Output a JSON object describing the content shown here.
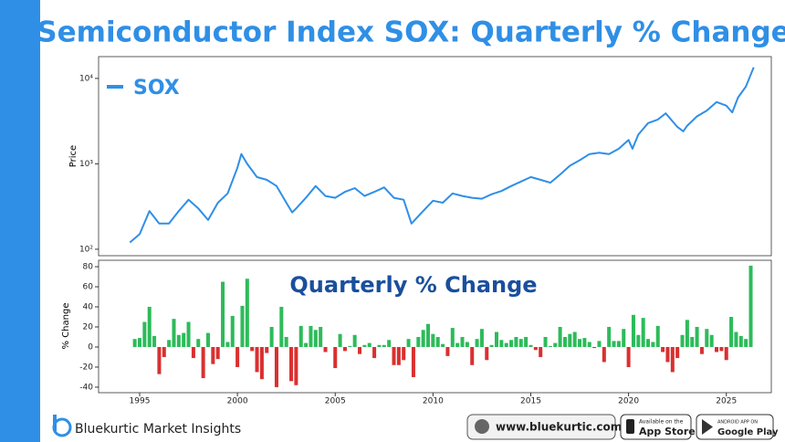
{
  "chart_data": [
    {
      "type": "line",
      "title": "Semiconductor Index SOX: Quarterly % Change",
      "ylabel": "Price",
      "log_y": true,
      "legend": "upper left",
      "xlim": [
        1992.9,
        2027.3
      ],
      "ylim": [
        84,
        18000
      ],
      "yticks": [
        {
          "value": 100,
          "label": "10²"
        },
        {
          "value": 1000,
          "label": "10³"
        },
        {
          "value": 10000,
          "label": "10⁴"
        }
      ],
      "x": [
        1994.5,
        1995.0,
        1995.5,
        1996.0,
        1996.5,
        1997.0,
        1997.5,
        1998.0,
        1998.5,
        1999.0,
        1999.5,
        2000.0,
        2000.2,
        2000.5,
        2001.0,
        2001.5,
        2002.0,
        2002.5,
        2002.8,
        2003.0,
        2003.5,
        2004.0,
        2004.5,
        2005.0,
        2005.5,
        2006.0,
        2006.5,
        2007.0,
        2007.5,
        2008.0,
        2008.5,
        2008.9,
        2009.5,
        2010.0,
        2010.5,
        2011.0,
        2011.5,
        2012.0,
        2012.5,
        2013.0,
        2013.5,
        2014.0,
        2014.5,
        2015.0,
        2015.5,
        2016.0,
        2016.5,
        2017.0,
        2017.5,
        2018.0,
        2018.5,
        2019.0,
        2019.5,
        2020.0,
        2020.2,
        2020.5,
        2021.0,
        2021.5,
        2021.9,
        2022.5,
        2022.8,
        2023.0,
        2023.5,
        2024.0,
        2024.5,
        2025.0,
        2025.3,
        2025.6,
        2026.0,
        2026.4
      ],
      "series": [
        {
          "name": "SOX",
          "color": "#2f8fe6",
          "values": [
            120,
            150,
            280,
            200,
            200,
            280,
            380,
            300,
            220,
            350,
            450,
            900,
            1300,
            1000,
            700,
            650,
            550,
            350,
            270,
            300,
            400,
            550,
            420,
            400,
            470,
            520,
            420,
            470,
            530,
            400,
            380,
            200,
            280,
            370,
            350,
            450,
            420,
            400,
            390,
            440,
            480,
            550,
            620,
            700,
            650,
            600,
            750,
            950,
            1100,
            1300,
            1350,
            1300,
            1500,
            1900,
            1500,
            2200,
            3000,
            3300,
            3900,
            2700,
            2400,
            2800,
            3600,
            4200,
            5300,
            4800,
            4000,
            6000,
            8000,
            13500
          ]
        }
      ]
    },
    {
      "type": "bar",
      "annotation": "Quarterly % Change",
      "ylabel": "% Change",
      "xlim": [
        1992.9,
        2027.3
      ],
      "ylim": [
        -45.5,
        86.4
      ],
      "xticks": [
        1995,
        2000,
        2005,
        2010,
        2015,
        2020,
        2025
      ],
      "yticks": [
        -40,
        -20,
        0,
        20,
        40,
        60,
        80
      ],
      "positive_color": "#2dbb5a",
      "negative_color": "#d93030",
      "x": [
        1994.75,
        1995.0,
        1995.25,
        1995.5,
        1995.75,
        1996.0,
        1996.25,
        1996.5,
        1996.75,
        1997.0,
        1997.25,
        1997.5,
        1997.75,
        1998.0,
        1998.25,
        1998.5,
        1998.75,
        1999.0,
        1999.25,
        1999.5,
        1999.75,
        2000.0,
        2000.25,
        2000.5,
        2000.75,
        2001.0,
        2001.25,
        2001.5,
        2001.75,
        2002.0,
        2002.25,
        2002.5,
        2002.75,
        2003.0,
        2003.25,
        2003.5,
        2003.75,
        2004.0,
        2004.25,
        2004.5,
        2004.75,
        2005.0,
        2005.25,
        2005.5,
        2005.75,
        2006.0,
        2006.25,
        2006.5,
        2006.75,
        2007.0,
        2007.25,
        2007.5,
        2007.75,
        2008.0,
        2008.25,
        2008.5,
        2008.75,
        2009.0,
        2009.25,
        2009.5,
        2009.75,
        2010.0,
        2010.25,
        2010.5,
        2010.75,
        2011.0,
        2011.25,
        2011.5,
        2011.75,
        2012.0,
        2012.25,
        2012.5,
        2012.75,
        2013.0,
        2013.25,
        2013.5,
        2013.75,
        2014.0,
        2014.25,
        2014.5,
        2014.75,
        2015.0,
        2015.25,
        2015.5,
        2015.75,
        2016.0,
        2016.25,
        2016.5,
        2016.75,
        2017.0,
        2017.25,
        2017.5,
        2017.75,
        2018.0,
        2018.25,
        2018.5,
        2018.75,
        2019.0,
        2019.25,
        2019.5,
        2019.75,
        2020.0,
        2020.25,
        2020.5,
        2020.75,
        2021.0,
        2021.25,
        2021.5,
        2021.75,
        2022.0,
        2022.25,
        2022.5,
        2022.75,
        2023.0,
        2023.25,
        2023.5,
        2023.75,
        2024.0,
        2024.25,
        2024.5,
        2024.75,
        2025.0,
        2025.25,
        2025.5,
        2025.75,
        2026.0,
        2026.25
      ],
      "values": [
        8,
        9,
        25,
        40,
        11,
        -27,
        -10,
        7,
        28,
        12,
        14,
        25,
        -11,
        8,
        -31,
        14,
        -17,
        -12,
        65,
        5,
        31,
        -20,
        41,
        68,
        -4,
        -25,
        -32,
        -6,
        20,
        -40,
        40,
        10,
        -34,
        -38,
        21,
        4,
        21,
        17,
        20,
        -5,
        0,
        -21,
        13,
        -4,
        1,
        12,
        -7,
        2,
        4,
        -11,
        2,
        2,
        7,
        -18,
        -18,
        -13,
        8,
        -30,
        10,
        17,
        23,
        13,
        10,
        3,
        -9,
        19,
        4,
        10,
        5,
        -18,
        8,
        18,
        -13,
        2,
        15,
        7,
        4,
        7,
        10,
        8,
        10,
        2,
        -3,
        -10,
        10,
        1,
        4,
        20,
        10,
        13,
        15,
        8,
        9,
        5,
        -1,
        6,
        -15,
        20,
        6,
        6,
        18,
        -20,
        32,
        12,
        29,
        8,
        5,
        21,
        -5,
        -15,
        -25,
        -11,
        12,
        27,
        10,
        20,
        -7,
        18,
        12,
        -5,
        -4,
        -13,
        30,
        15,
        11,
        8,
        81
      ]
    }
  ],
  "footer": {
    "brand": "Bluekurtic Market Insights",
    "website": "www.bluekurtic.com",
    "app_store": {
      "small": "Available on the",
      "big": "App Store"
    },
    "google_play": {
      "small": "ANDROID APP ON",
      "big": "Google Play"
    }
  }
}
